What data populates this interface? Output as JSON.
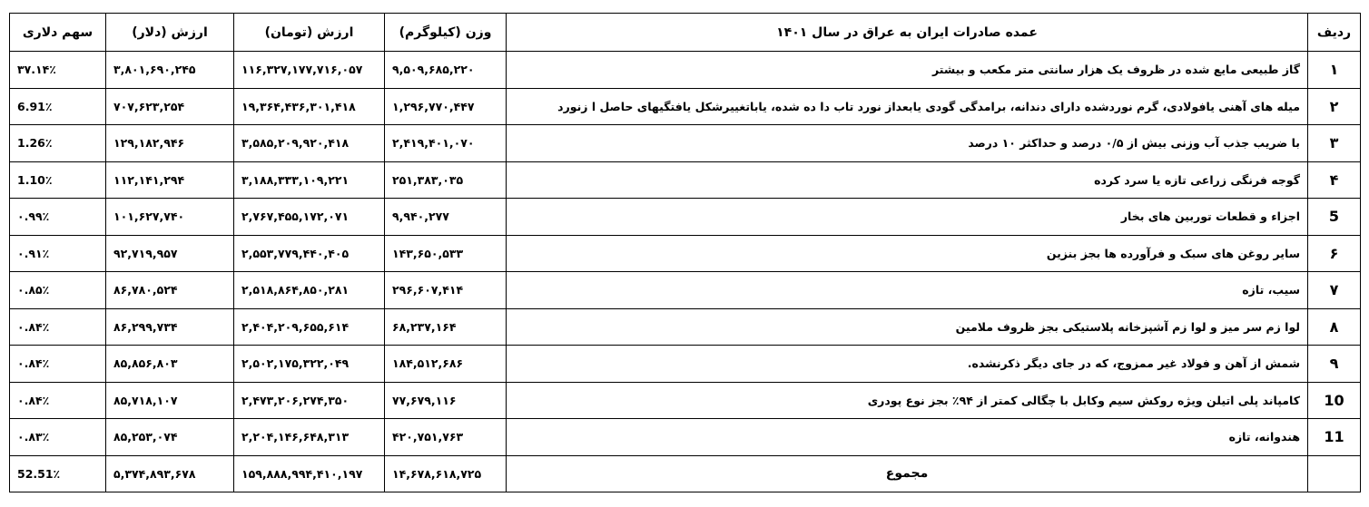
{
  "table": {
    "header": [
      "ردیف",
      "عمده صادرات ایران به عراق در سال ۱۴۰۱",
      "وزن (کیلوگرم)",
      "ارزش (تومان)",
      "ارزش (دلار)",
      "سهم دلاری"
    ],
    "rows": [
      [
        "۱",
        "گاز طبیعی مایع شده در ظروف یک هزار سانتی متر مکعب و بیشتر",
        "۹,۵۰۹,۶۸۵,۲۲۰",
        "۱۱۶,۳۲۷,۱۷۷,۷۱۶,۰۵۷",
        "۳,۸۰۱,۶۹۰,۲۴۵",
        "۳۷.۱۴٪"
      ],
      [
        "۲",
        "میله های آهنی یافولادی، گرم نوردشده دارای دندانه، برامدگی گودی یابعداز نورد تاب دا ده شده، یاباتغییرشکل یافتگیهای حاصل ا زنورد",
        "۱,۲۹۶,۷۷۰,۴۴۷",
        "۱۹,۳۶۴,۴۳۶,۳۰۱,۴۱۸",
        "۷۰۷,۶۲۳,۲۵۴",
        "6.91٪"
      ],
      [
        "۳",
        "با ضریب جذب آب وزنی بیش از ۰/۵ درصد و حداکثر ۱۰ درصد",
        "۲,۴۱۹,۴۰۱,۰۷۰",
        "۳,۵۸۵,۲۰۹,۹۲۰,۴۱۸",
        "۱۲۹,۱۸۲,۹۴۶",
        "1.26٪"
      ],
      [
        "۴",
        "گوجه فرنگی زراعی تازه یا سرد کرده",
        "۲۵۱,۳۸۳,۰۳۵",
        "۳,۱۸۸,۳۳۳,۱۰۹,۲۲۱",
        "۱۱۲,۱۴۱,۲۹۴",
        "1.10٪"
      ],
      [
        "5",
        "اجزاء و قطعات توربین های بخار",
        "۹,۹۴۰,۲۷۷",
        "۲,۷۶۷,۴۵۵,۱۷۲,۰۷۱",
        "۱۰۱,۶۲۷,۷۴۰",
        "۰.۹۹٪"
      ],
      [
        "۶",
        "سایر روغن های سبک و فرآورده ها بجز بنزین",
        "۱۴۳,۶۵۰,۵۳۳",
        "۲,۵۵۳,۷۷۹,۴۴۰,۴۰۵",
        "۹۲,۷۱۹,۹۵۷",
        "۰.۹۱٪"
      ],
      [
        "۷",
        "سیب، تازه",
        "۲۹۶,۶۰۷,۴۱۴",
        "۲,۵۱۸,۸۶۴,۸۵۰,۲۸۱",
        "۸۶,۷۸۰,۵۲۴",
        "۰.۸۵٪"
      ],
      [
        "۸",
        "لوا زم سر میز و لوا زم آشپزخانه پلاستیکی بجز ظروف ملامین",
        "۶۸,۲۳۷,۱۶۴",
        "۲,۴۰۴,۲۰۹,۶۵۵,۶۱۴",
        "۸۶,۲۹۹,۷۳۴",
        "۰.۸۴٪"
      ],
      [
        "۹",
        "شمش از آهن و فولاد غیر ممزوج، که در جای دیگر ذکرنشده.",
        "۱۸۴,۵۱۲,۶۸۶",
        "۲,۵۰۲,۱۷۵,۳۲۲,۰۴۹",
        "۸۵,۸۵۶,۸۰۳",
        "۰.۸۴٪"
      ],
      [
        "10",
        "کامپاند پلی اتیلن ویژه روکش سیم وکابل با چگالی کمتر از ۹۴٪ بجز نوع پودری",
        "۷۷,۶۷۹,۱۱۶",
        "۲,۴۷۳,۲۰۶,۲۷۴,۳۵۰",
        "۸۵,۷۱۸,۱۰۷",
        "۰.۸۴٪"
      ],
      [
        "11",
        "هندوانه، تازه",
        "۴۲۰,۷۵۱,۷۶۳",
        "۲,۲۰۴,۱۴۶,۶۴۸,۳۱۳",
        "۸۵,۲۵۳,۰۷۴",
        "۰.۸۳٪"
      ]
    ],
    "total": [
      "مجموع",
      "۱۴,۶۷۸,۶۱۸,۷۲۵",
      "۱۵۹,۸۸۸,۹۹۴,۴۱۰,۱۹۷",
      "۵,۳۷۴,۸۹۳,۶۷۸",
      "52.51٪"
    ]
  }
}
